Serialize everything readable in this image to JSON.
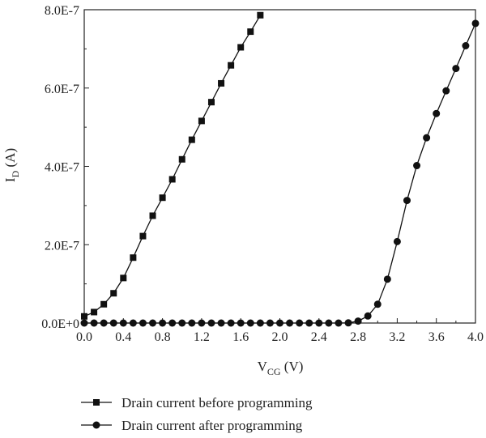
{
  "chart_data": {
    "type": "line",
    "title": "",
    "xlabel": {
      "main": "V",
      "sub": "CG",
      "unit": " (V)"
    },
    "ylabel": {
      "main": "I",
      "sub": "D",
      "unit": " (A)"
    },
    "xlim": [
      0,
      4.0
    ],
    "ylim": [
      0,
      8e-07
    ],
    "grid": false,
    "legend_position": "bottom",
    "x_ticks": [
      0.0,
      0.4,
      0.8,
      1.2,
      1.6,
      2.0,
      2.4,
      2.8,
      3.2,
      3.6,
      4.0
    ],
    "x_tick_labels": [
      "0.0",
      "0.4",
      "0.8",
      "1.2",
      "1.6",
      "2.0",
      "2.4",
      "2.8",
      "3.2",
      "3.6",
      "4.0"
    ],
    "y_ticks": [
      0,
      2e-07,
      4e-07,
      6e-07,
      8e-07
    ],
    "y_tick_labels": [
      "0.0E+0",
      "2.0E-7",
      "4.0E-7",
      "6.0E-7",
      "8.0E-7"
    ],
    "series": [
      {
        "name": "Drain current before programming",
        "marker": "square",
        "color": "#111111",
        "x": [
          0.0,
          0.1,
          0.2,
          0.3,
          0.4,
          0.5,
          0.6,
          0.7,
          0.8,
          0.9,
          1.0,
          1.1,
          1.2,
          1.3,
          1.4,
          1.5,
          1.6,
          1.7,
          1.8
        ],
        "y": [
          1.7e-08,
          2.8e-08,
          4.8e-08,
          7.6e-08,
          1.15e-07,
          1.67e-07,
          2.22e-07,
          2.74e-07,
          3.2e-07,
          3.67e-07,
          4.18e-07,
          4.68e-07,
          5.16e-07,
          5.64e-07,
          6.12e-07,
          6.58e-07,
          7.04e-07,
          7.44e-07,
          7.86e-07
        ]
      },
      {
        "name": "Drain current after programming",
        "marker": "circle",
        "color": "#111111",
        "x": [
          0.0,
          0.1,
          0.2,
          0.3,
          0.4,
          0.5,
          0.6,
          0.7,
          0.8,
          0.9,
          1.0,
          1.1,
          1.2,
          1.3,
          1.4,
          1.5,
          1.6,
          1.7,
          1.8,
          1.9,
          2.0,
          2.1,
          2.2,
          2.3,
          2.4,
          2.5,
          2.6,
          2.7,
          2.8,
          2.9,
          3.0,
          3.1,
          3.2,
          3.3,
          3.4,
          3.5,
          3.6,
          3.7,
          3.8,
          3.9,
          4.0
        ],
        "y": [
          0,
          0,
          0,
          0,
          0,
          0,
          0,
          0,
          0,
          0,
          0,
          0,
          0,
          0,
          0,
          0,
          0,
          0,
          0,
          0,
          0,
          0,
          0,
          0,
          0,
          0,
          0,
          5e-10,
          5e-09,
          1.8e-08,
          4.8e-08,
          1.12e-07,
          2.08e-07,
          3.13e-07,
          4.02e-07,
          4.73e-07,
          5.35e-07,
          5.93e-07,
          6.5e-07,
          7.08e-07,
          7.65e-07
        ]
      }
    ]
  }
}
